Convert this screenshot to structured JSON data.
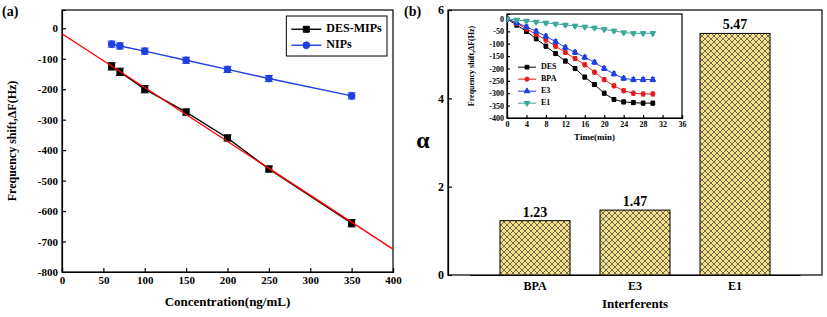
{
  "chart_data": [
    {
      "type": "line",
      "title": "(a)",
      "x_label": "Concentration(ng/mL)",
      "y_label": "Frequency shift,ΔF(Hz)",
      "xlim": [
        0,
        400
      ],
      "xticks": [
        0,
        50,
        100,
        150,
        200,
        250,
        300,
        350,
        400
      ],
      "ylim": [
        -800,
        60
      ],
      "yticks": [
        -800,
        -700,
        -600,
        -500,
        -400,
        -300,
        -200,
        -100,
        0
      ],
      "legend": "upper right",
      "series": [
        {
          "name": "DES-MIPs",
          "color": "#000000",
          "marker": "square",
          "line_style": "solid",
          "x": [
            60,
            70,
            100,
            150,
            200,
            250,
            350
          ],
          "values": [
            -125,
            -143,
            -200,
            -275,
            -360,
            -462,
            -640
          ],
          "errors": [
            12,
            12,
            12,
            10,
            10,
            10,
            12
          ]
        },
        {
          "name": "NIPs",
          "color": "#1f3fe0",
          "marker": "circle",
          "line_style": "solid",
          "x": [
            60,
            70,
            100,
            150,
            200,
            250,
            350
          ],
          "values": [
            -52,
            -58,
            -75,
            -105,
            -135,
            -165,
            -222
          ],
          "errors": [
            10,
            10,
            10,
            10,
            10,
            10,
            10
          ]
        },
        {
          "color": "#ff0000",
          "marker": "none",
          "line_style": "solid",
          "x": [
            0,
            400
          ],
          "values": [
            -18,
            -725
          ]
        }
      ]
    },
    {
      "type": "bar",
      "title": "(b)",
      "x_label": "Interferents",
      "y_label": "α",
      "categories": [
        "BPA",
        "E3",
        "E1"
      ],
      "values": [
        1.23,
        1.47,
        5.47
      ],
      "color": "#f5e08c",
      "ylim": [
        0,
        6
      ],
      "yticks": [
        0,
        2,
        4,
        6
      ],
      "data_labels": true
    },
    {
      "type": "line",
      "x_label": "Time(min)",
      "y_label": "Frequency shift,ΔF(Hz)",
      "xlim": [
        0,
        36
      ],
      "xticks": [
        0,
        4,
        8,
        12,
        16,
        20,
        24,
        28,
        32,
        36
      ],
      "ylim": [
        -400,
        20
      ],
      "yticks": [
        -400,
        -350,
        -300,
        -250,
        -200,
        -150,
        -100,
        -50,
        0
      ],
      "legend": "lower left",
      "x": [
        0,
        2,
        4,
        6,
        8,
        10,
        12,
        14,
        16,
        18,
        20,
        22,
        24,
        26,
        28,
        30
      ],
      "series": [
        {
          "name": "DES",
          "color": "#000000",
          "marker": "square",
          "line_style": "solid",
          "values": [
            0,
            -25,
            -50,
            -80,
            -110,
            -140,
            -170,
            -200,
            -235,
            -265,
            -300,
            -325,
            -335,
            -338,
            -340,
            -340
          ],
          "errors": [
            8,
            8,
            8,
            8,
            8,
            8,
            8,
            8,
            8,
            8,
            8,
            8,
            8,
            8,
            8,
            8
          ]
        },
        {
          "name": "BPA",
          "color": "#e41a1c",
          "marker": "circle",
          "line_style": "solid",
          "values": [
            0,
            -18,
            -40,
            -62,
            -85,
            -110,
            -135,
            -160,
            -185,
            -215,
            -245,
            -270,
            -290,
            -300,
            -303,
            -303
          ],
          "errors": [
            8,
            8,
            8,
            8,
            8,
            8,
            8,
            8,
            8,
            8,
            8,
            8,
            8,
            8,
            8,
            8
          ]
        },
        {
          "name": "E3",
          "color": "#1f3fe0",
          "marker": "triangle-up",
          "line_style": "solid",
          "values": [
            0,
            -15,
            -32,
            -50,
            -70,
            -92,
            -115,
            -135,
            -155,
            -175,
            -200,
            -222,
            -240,
            -245,
            -245,
            -245
          ],
          "errors": [
            8,
            8,
            8,
            8,
            8,
            8,
            8,
            8,
            8,
            8,
            8,
            8,
            8,
            8,
            8,
            8
          ]
        },
        {
          "name": "E1",
          "color": "#3fa89c",
          "marker": "triangle-down",
          "line_style": "solid",
          "values": [
            0,
            -4,
            -8,
            -12,
            -16,
            -20,
            -24,
            -28,
            -32,
            -36,
            -42,
            -48,
            -55,
            -58,
            -58,
            -58
          ],
          "errors": [
            6,
            6,
            6,
            6,
            6,
            6,
            6,
            6,
            6,
            6,
            6,
            6,
            6,
            6,
            6,
            6
          ]
        }
      ]
    }
  ]
}
